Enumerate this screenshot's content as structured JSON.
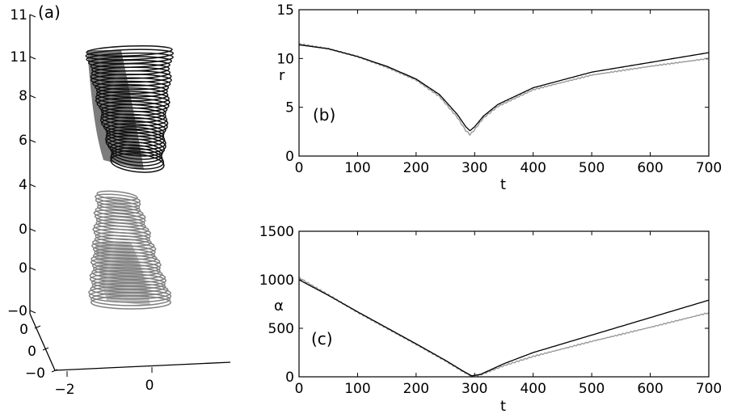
{
  "chart_data": [
    {
      "panel": "(a)",
      "type": "scatter",
      "kind": "3d-trajectory",
      "z_tick_labels": [
        "11",
        "11",
        "8",
        "6",
        "4",
        "0",
        "0",
        "−0"
      ],
      "y_tick_labels": [
        "0",
        "0",
        "−0"
      ],
      "x_tick_labels": [
        "−2",
        "0"
      ],
      "series": [
        {
          "color": "#111111",
          "z_range": [
            5.0,
            10.9
          ],
          "loops": 34
        },
        {
          "color": "#808080",
          "z_range": [
            -0.3,
            4.7
          ],
          "loops": 34
        }
      ]
    },
    {
      "panel": "(b)",
      "type": "line",
      "xlabel": "t",
      "ylabel": "r",
      "xlim": [
        0,
        700
      ],
      "ylim": [
        0,
        15
      ],
      "x_ticks": [
        0,
        100,
        200,
        300,
        400,
        500,
        600,
        700
      ],
      "y_ticks": [
        0,
        5,
        10,
        15
      ],
      "series": [
        {
          "color": "#000000",
          "x": [
            0,
            50,
            100,
            150,
            200,
            240,
            270,
            285,
            292,
            300,
            315,
            340,
            400,
            500,
            600,
            700
          ],
          "y": [
            11.4,
            11.0,
            10.2,
            9.2,
            7.9,
            6.3,
            4.3,
            3.0,
            2.6,
            3.0,
            4.1,
            5.3,
            7.0,
            8.6,
            9.6,
            10.6
          ]
        },
        {
          "color": "#999999",
          "x": [
            0,
            50,
            100,
            150,
            200,
            240,
            270,
            285,
            292,
            300,
            315,
            340,
            400,
            500,
            600,
            700
          ],
          "y": [
            11.5,
            11.0,
            10.2,
            9.1,
            7.8,
            6.1,
            4.0,
            2.6,
            2.2,
            2.7,
            3.9,
            5.1,
            6.8,
            8.3,
            9.2,
            10.0
          ]
        }
      ]
    },
    {
      "panel": "(c)",
      "type": "line",
      "xlabel": "t",
      "ylabel": "α",
      "xlim": [
        0,
        700
      ],
      "ylim": [
        0,
        1500
      ],
      "x_ticks": [
        0,
        100,
        200,
        300,
        400,
        500,
        600,
        700
      ],
      "y_ticks": [
        0,
        500,
        1000,
        1500
      ],
      "series": [
        {
          "color": "#000000",
          "x": [
            0,
            50,
            100,
            150,
            200,
            250,
            280,
            295,
            310,
            350,
            400,
            500,
            600,
            700
          ],
          "y": [
            1000,
            840,
            670,
            505,
            340,
            170,
            60,
            10,
            25,
            135,
            250,
            430,
            610,
            790
          ]
        },
        {
          "color": "#999999",
          "x": [
            0,
            50,
            100,
            150,
            200,
            250,
            280,
            295,
            310,
            350,
            400,
            500,
            600,
            700
          ],
          "y": [
            1020,
            845,
            665,
            500,
            335,
            165,
            55,
            5,
            20,
            115,
            210,
            365,
            510,
            660
          ]
        }
      ]
    }
  ]
}
